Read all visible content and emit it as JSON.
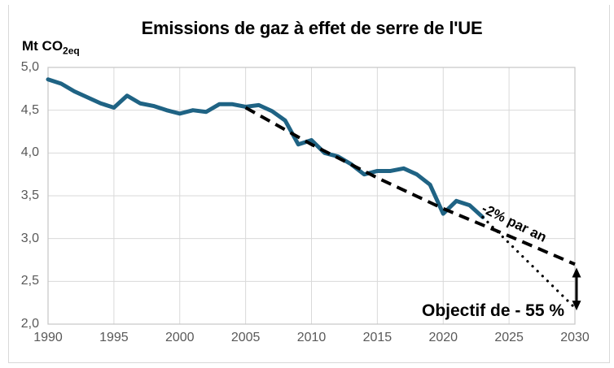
{
  "chart": {
    "title": "Emissions de gaz à effet de serre de l'UE",
    "unit_label": {
      "prefix": "Mt CO",
      "subscript": "2eq"
    },
    "annotations": {
      "trend_label": "-2% par an",
      "target_label": "Objectif de - 55 %"
    },
    "colors": {
      "series_blue": "#1F6384",
      "annotation_black": "#000000",
      "gridline_gray": "#D9D9D9",
      "plot_border_gray": "#C6C6C6",
      "axis_text_gray": "#595959"
    },
    "y_axis": {
      "ticks": [
        {
          "label": "5,0",
          "value": 5.0
        },
        {
          "label": "4,5",
          "value": 4.5
        },
        {
          "label": "4,0",
          "value": 4.0
        },
        {
          "label": "3,5",
          "value": 3.5
        },
        {
          "label": "3,0",
          "value": 3.0
        },
        {
          "label": "2,5",
          "value": 2.5
        },
        {
          "label": "2,0",
          "value": 2.0
        }
      ]
    },
    "x_axis": {
      "ticks": [
        1990,
        1995,
        2000,
        2005,
        2010,
        2015,
        2020,
        2025,
        2030
      ]
    }
  },
  "chart_data": {
    "type": "line",
    "title": "Emissions de gaz à effet de serre de l'UE",
    "ylabel": "Mt CO2eq",
    "xlim": [
      1990,
      2030
    ],
    "ylim": [
      2.0,
      5.0
    ],
    "grid": true,
    "legend_position": "none",
    "series": [
      {
        "name": "emissions-historiques",
        "style": "solid",
        "color": "#1F6384",
        "x": [
          1990,
          1991,
          1992,
          1993,
          1994,
          1995,
          1996,
          1997,
          1998,
          1999,
          2000,
          2001,
          2002,
          2003,
          2004,
          2005,
          2006,
          2007,
          2008,
          2009,
          2010,
          2011,
          2012,
          2013,
          2014,
          2015,
          2016,
          2017,
          2018,
          2019,
          2020,
          2021,
          2022,
          2023
        ],
        "values": [
          4.86,
          4.81,
          4.72,
          4.65,
          4.58,
          4.53,
          4.67,
          4.58,
          4.55,
          4.5,
          4.46,
          4.5,
          4.48,
          4.57,
          4.57,
          4.54,
          4.56,
          4.49,
          4.38,
          4.1,
          4.15,
          4.0,
          3.96,
          3.87,
          3.75,
          3.79,
          3.79,
          3.82,
          3.75,
          3.63,
          3.29,
          3.44,
          3.39,
          3.25
        ],
        "annotation": ""
      },
      {
        "name": "tendance-2-pourcent-par-an",
        "style": "dashed",
        "color": "#000000",
        "x": [
          2005,
          2010,
          2015,
          2020,
          2025,
          2030
        ],
        "values": [
          4.53,
          4.1,
          3.71,
          3.35,
          3.03,
          2.7
        ],
        "annotation": "-2% par an"
      },
      {
        "name": "trajectoire-objectif",
        "style": "dotted",
        "color": "#000000",
        "x": [
          2023,
          2030
        ],
        "values": [
          3.25,
          2.19
        ],
        "annotation": "Objectif de - 55 %"
      }
    ],
    "gap_arrow": {
      "x": 2030,
      "from": 2.66,
      "to": 2.16
    }
  }
}
